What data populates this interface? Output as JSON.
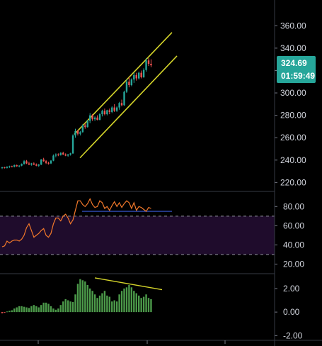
{
  "theme": {
    "background": "#000000",
    "up_color": "#26a69a",
    "down_color": "#ef5350",
    "trendline_color": "#d4d42a",
    "rsi_color": "#f2782a",
    "rsi_band_color": "#1f0c2c",
    "rsi_midline_color": "#3b5bdb",
    "macd_up_color": "#4c9a4a",
    "macd_down_color": "#ef5350",
    "axis_line_color": "#363a45",
    "text_color": "#d1d4dc",
    "badge_color": "#26a69a"
  },
  "price_badge": {
    "price": "324.69",
    "countdown": "01:59:49"
  },
  "chart_data": [
    {
      "type": "candlestick",
      "title": "",
      "yticks": [
        "360.00",
        "340.00",
        "320.00",
        "300.00",
        "280.00",
        "260.00",
        "240.00",
        "220.00"
      ],
      "ytick_values": [
        360,
        340,
        320,
        300,
        280,
        260,
        240,
        220
      ],
      "ylim": [
        212,
        383
      ],
      "candles": [
        [
          233,
          234,
          232,
          233.5
        ],
        [
          233.5,
          234,
          232.5,
          233
        ],
        [
          233,
          234.5,
          232.5,
          234
        ],
        [
          234,
          235,
          233,
          234.5
        ],
        [
          234.5,
          235,
          233.5,
          234
        ],
        [
          234,
          236,
          233.5,
          235.5
        ],
        [
          235.5,
          236,
          234,
          234.5
        ],
        [
          234.5,
          235.5,
          233.5,
          235
        ],
        [
          235,
          237,
          234.5,
          236.5
        ],
        [
          236.5,
          240,
          236,
          239
        ],
        [
          239,
          240,
          236.5,
          237
        ],
        [
          237,
          238.5,
          235.5,
          236
        ],
        [
          236,
          237.5,
          235,
          237
        ],
        [
          237,
          238,
          235.5,
          236
        ],
        [
          236,
          237,
          234.5,
          235
        ],
        [
          235,
          236.5,
          234,
          236
        ],
        [
          236,
          241,
          235.5,
          240.5
        ],
        [
          240.5,
          242,
          238.5,
          239
        ],
        [
          239,
          240,
          236.5,
          237.5
        ],
        [
          237.5,
          238.5,
          236,
          237
        ],
        [
          237,
          240,
          236.5,
          239.5
        ],
        [
          239.5,
          245,
          239,
          244
        ],
        [
          244,
          246,
          242.5,
          245
        ],
        [
          245,
          246,
          243.5,
          244.5
        ],
        [
          244.5,
          247,
          244,
          246.5
        ],
        [
          246.5,
          247.5,
          244.5,
          245
        ],
        [
          245,
          246,
          243.5,
          244
        ],
        [
          244,
          245.5,
          243,
          245
        ],
        [
          245,
          246.5,
          244,
          246
        ],
        [
          246,
          263,
          245.5,
          262
        ],
        [
          262,
          268,
          260,
          266
        ],
        [
          266,
          267,
          262,
          263.5
        ],
        [
          263.5,
          266,
          262,
          265
        ],
        [
          265,
          272,
          264.5,
          271
        ],
        [
          271,
          273,
          268,
          269.5
        ],
        [
          269.5,
          276,
          269,
          275
        ],
        [
          275,
          282,
          273,
          280
        ],
        [
          280,
          281,
          275,
          276.5
        ],
        [
          276.5,
          279,
          275,
          278
        ],
        [
          278,
          280,
          275.5,
          276
        ],
        [
          276,
          282,
          275.5,
          281
        ],
        [
          281,
          285,
          279,
          284
        ],
        [
          284,
          286,
          280,
          281
        ],
        [
          281,
          285,
          280,
          284.5
        ],
        [
          284.5,
          286,
          281,
          283
        ],
        [
          283,
          288,
          282,
          287
        ],
        [
          287,
          290,
          283,
          284
        ],
        [
          284,
          288,
          283,
          287
        ],
        [
          287,
          292,
          285,
          291
        ],
        [
          291,
          294,
          288,
          289
        ],
        [
          289,
          302,
          288.5,
          301
        ],
        [
          301,
          312,
          300,
          310
        ],
        [
          310,
          314,
          305,
          307
        ],
        [
          307,
          313,
          306,
          312
        ],
        [
          312,
          318,
          309,
          316
        ],
        [
          316,
          318,
          311,
          313
        ],
        [
          313,
          319,
          312,
          318
        ],
        [
          318,
          320,
          313,
          314
        ],
        [
          314,
          322,
          313.5,
          320.5
        ],
        [
          320.5,
          331,
          319,
          329
        ],
        [
          329,
          331,
          324,
          326
        ],
        [
          326,
          330,
          323,
          324.69
        ]
      ],
      "channel_upper": [
        [
          261.5,
          263
        ],
        [
          305,
          354
        ]
      ],
      "channel_lower": [
        [
          272.5,
          242
        ],
        [
          315,
          333
        ]
      ]
    },
    {
      "type": "line",
      "title": "",
      "yticks": [
        "80.00",
        "60.00",
        "40.00",
        "20.00"
      ],
      "ytick_values": [
        80,
        60,
        40,
        20
      ],
      "ylim": [
        10,
        95
      ],
      "band": [
        30,
        70
      ],
      "midline": 75,
      "midline_x": [
        263,
        300
      ],
      "values": [
        38,
        39,
        44,
        42,
        44,
        45,
        45,
        44,
        46,
        50,
        58,
        62,
        55,
        48,
        50,
        52,
        55,
        57,
        50,
        48,
        52,
        62,
        68,
        68,
        65,
        70,
        72,
        68,
        62,
        66,
        76,
        86,
        86,
        82,
        80,
        83,
        88,
        82,
        79,
        80,
        86,
        84,
        78,
        80,
        76,
        81,
        85,
        80,
        84,
        79,
        83,
        86,
        84,
        78,
        84,
        76,
        80,
        79,
        77,
        75,
        79,
        78
      ]
    },
    {
      "type": "bar",
      "title": "",
      "yticks": [
        "2.00",
        "0.00",
        "-2.00"
      ],
      "ytick_values": [
        2,
        0,
        -2
      ],
      "ylim": [
        -2.4,
        3.2
      ],
      "trendline": [
        [
          263,
          2.9
        ],
        [
          302,
          1.9
        ]
      ],
      "values": [
        -0.1,
        -0.05,
        0.05,
        0.1,
        0.15,
        0.3,
        0.4,
        0.5,
        0.5,
        0.45,
        0.4,
        0.35,
        0.5,
        0.6,
        0.5,
        0.4,
        0.6,
        0.8,
        0.8,
        0.7,
        0.5,
        0.3,
        0.2,
        0.3,
        0.6,
        0.9,
        1.1,
        1.0,
        0.9,
        0.85,
        1.5,
        2.4,
        2.8,
        2.7,
        2.6,
        2.3,
        2.0,
        1.8,
        1.5,
        1.2,
        1.4,
        1.6,
        1.8,
        1.4,
        1.3,
        0.9,
        1.0,
        0.9,
        1.5,
        1.8,
        2.0,
        2.1,
        2.3,
        2.1,
        1.8,
        1.6,
        1.4,
        1.2,
        1.3,
        1.5,
        1.2,
        1.1
      ]
    }
  ]
}
